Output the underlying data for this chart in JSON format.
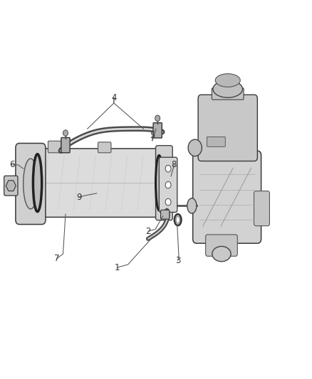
{
  "background_color": "#ffffff",
  "fig_width": 4.38,
  "fig_height": 5.33,
  "dpi": 100,
  "line_color": "#555555",
  "text_color": "#333333",
  "part_fontsize": 8.5,
  "callouts": [
    {
      "num": "1",
      "nx": 0.375,
      "ny": 0.295
    },
    {
      "num": "2",
      "nx": 0.475,
      "ny": 0.39
    },
    {
      "num": "3",
      "nx": 0.57,
      "ny": 0.31
    },
    {
      "num": "4",
      "nx": 0.37,
      "ny": 0.74
    },
    {
      "num": "5",
      "nx": 0.49,
      "ny": 0.64
    },
    {
      "num": "6",
      "nx": 0.04,
      "ny": 0.565
    },
    {
      "num": "7",
      "nx": 0.185,
      "ny": 0.315
    },
    {
      "num": "8",
      "nx": 0.56,
      "ny": 0.565
    },
    {
      "num": "9",
      "nx": 0.255,
      "ny": 0.48
    }
  ]
}
